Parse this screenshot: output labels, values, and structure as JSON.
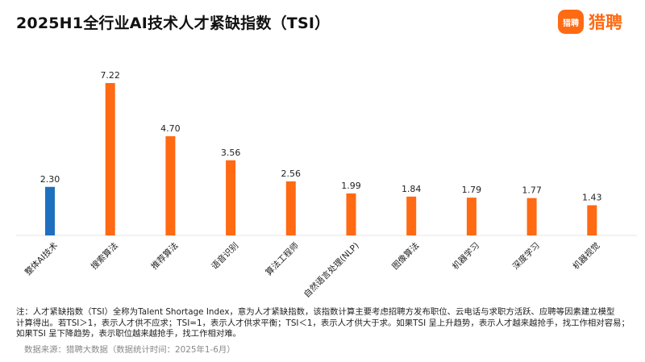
{
  "header": {
    "title": "2025H1全行业AI技术人才紧缺指数（TSI）",
    "logo_badge_text": "猎聘",
    "logo_text": "猎聘",
    "brand_color": "#ff6a13"
  },
  "chart_data": {
    "type": "bar",
    "title": "2025H1全行业AI技术人才紧缺指数（TSI）",
    "categories": [
      "整体AI技术",
      "搜索算法",
      "推荐算法",
      "语音识别",
      "算法工程师",
      "自然语言处理(NLP)",
      "图像算法",
      "机器学习",
      "深度学习",
      "机器视觉"
    ],
    "values": [
      2.3,
      7.22,
      4.7,
      3.56,
      2.56,
      1.99,
      1.84,
      1.79,
      1.77,
      1.43
    ],
    "value_labels": [
      "2.30",
      "7.22",
      "4.70",
      "3.56",
      "2.56",
      "1.99",
      "1.84",
      "1.79",
      "1.77",
      "1.43"
    ],
    "colors": [
      "#1f6fbf",
      "#ff6a13",
      "#ff6a13",
      "#ff6a13",
      "#ff6a13",
      "#ff6a13",
      "#ff6a13",
      "#ff6a13",
      "#ff6a13",
      "#ff6a13"
    ],
    "ylim": [
      0,
      7.22
    ],
    "xlabel": "",
    "ylabel": "",
    "grid": false,
    "tick_label_rotation": -45
  },
  "notes": {
    "line1": "注：人才紧缺指数（TSI）全称为Talent Shortage Index，意为人才紧缺指数，该指数计算主要考虑招聘方发布职位、云电话与求职方活跃、应聘等因素建立模型",
    "line2": "计算得出。若TSI＞1，表示人才供不应求；TSI=1，表示人才供求平衡；TSI＜1，表示人才供大于求。如果TSI 呈上升趋势，表示人才越来越抢手，找工作相对容易；",
    "line3": "如果TSI 呈下降趋势，表示职位越来越抢手，找工作相对难。"
  },
  "source": "数据来源：猎聘大数据（数据统计时间：2025年1-6月）"
}
